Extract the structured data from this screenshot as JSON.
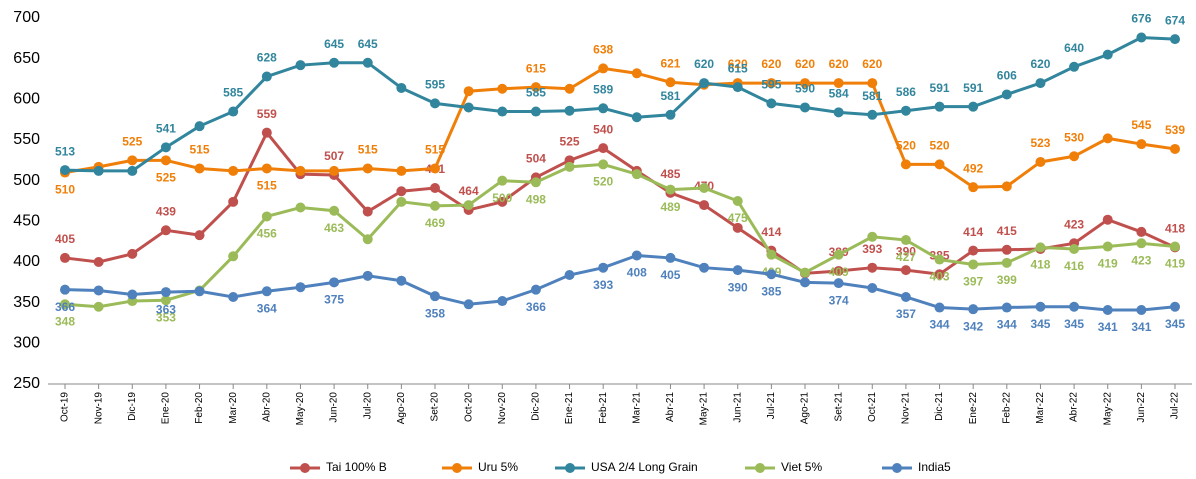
{
  "chart_data": {
    "type": "line",
    "categories": [
      "Oct-19",
      "Nov-19",
      "Dic-19",
      "Ene-20",
      "Feb-20",
      "Mar-20",
      "Abr-20",
      "May-20",
      "Jun-20",
      "Jul-20",
      "Ago-20",
      "Set-20",
      "Oct-20",
      "Nov-20",
      "Dic-20",
      "Ene-21",
      "Feb-21",
      "Mar-21",
      "Abr-21",
      "May-21",
      "Jun-21",
      "Jul-21",
      "Ago-21",
      "Set-21",
      "Oct-21",
      "Nov-21",
      "Dic-21",
      "Ene-22",
      "Feb-22",
      "Mar-22",
      "Abr-22",
      "May-22",
      "Jun-22",
      "Jul-22"
    ],
    "ylim": [
      250,
      700
    ],
    "yticks": [
      250,
      300,
      350,
      400,
      450,
      500,
      550,
      600,
      650,
      700
    ],
    "grid": false,
    "legend": "bottom",
    "series": [
      {
        "name": "Tai 100% B",
        "color": "#c0504d",
        "values": [
          405,
          400,
          410,
          439,
          433,
          474,
          559,
          508,
          507,
          462,
          487,
          491,
          464,
          474,
          504,
          525,
          540,
          512,
          485,
          470,
          442,
          414,
          386,
          389,
          393,
          390,
          385,
          414,
          415,
          416,
          423,
          452,
          437,
          418
        ],
        "value_labels": [
          "405",
          null,
          null,
          "439",
          null,
          null,
          "559",
          null,
          "507",
          null,
          null,
          "491",
          "464",
          null,
          "504",
          "525",
          "540",
          null,
          "485",
          "470",
          null,
          "414",
          null,
          "389",
          "393",
          "390",
          "385",
          "414",
          "415",
          null,
          "423",
          null,
          null,
          "418"
        ]
      },
      {
        "name": "Uru 5%",
        "color": "#f07f09",
        "values": [
          510,
          517,
          525,
          525,
          515,
          512,
          515,
          512,
          512,
          515,
          512,
          515,
          610,
          613,
          615,
          613,
          638,
          632,
          621,
          618,
          620,
          620,
          620,
          620,
          620,
          520,
          520,
          492,
          493,
          523,
          530,
          552,
          545,
          539
        ],
        "value_labels": [
          "510",
          null,
          "525",
          "525",
          "515",
          null,
          "515",
          null,
          null,
          "515",
          null,
          "515",
          null,
          null,
          "615",
          null,
          "638",
          null,
          "621",
          null,
          "620",
          "620",
          "620",
          "620",
          "620",
          "520",
          "520",
          "492",
          null,
          "523",
          "530",
          null,
          "545",
          "539"
        ]
      },
      {
        "name": "USA 2/4 Long Grain",
        "color": "#31859c",
        "values": [
          513,
          512,
          512,
          541,
          567,
          585,
          628,
          642,
          645,
          645,
          614,
          595,
          590,
          585,
          585,
          586,
          589,
          578,
          581,
          620,
          615,
          595,
          590,
          584,
          581,
          586,
          591,
          591,
          606,
          620,
          640,
          655,
          676,
          674
        ],
        "value_labels": [
          "513",
          null,
          null,
          "541",
          null,
          "585",
          "628",
          null,
          "645",
          "645",
          null,
          "595",
          null,
          null,
          "585",
          null,
          "589",
          null,
          "581",
          "620",
          "615",
          "595",
          "590",
          "584",
          "581",
          "586",
          "591",
          "591",
          "606",
          "620",
          "640",
          null,
          "676",
          "674"
        ]
      },
      {
        "name": "Viet 5%",
        "color": "#9bbb59",
        "values": [
          348,
          345,
          352,
          353,
          365,
          407,
          456,
          467,
          463,
          428,
          474,
          469,
          470,
          500,
          498,
          517,
          520,
          508,
          489,
          491,
          475,
          409,
          387,
          409,
          431,
          427,
          403,
          397,
          399,
          418,
          416,
          419,
          423,
          419
        ],
        "value_labels": [
          "348",
          null,
          null,
          "353",
          null,
          null,
          "456",
          null,
          "463",
          null,
          null,
          "469",
          null,
          "500",
          "498",
          null,
          "520",
          null,
          "489",
          null,
          "475",
          "409",
          null,
          "409",
          null,
          "427",
          "403",
          "397",
          "399",
          "418",
          "416",
          "419",
          "423",
          "419"
        ]
      },
      {
        "name": "India5",
        "color": "#4f81bd",
        "values": [
          366,
          365,
          360,
          363,
          364,
          357,
          364,
          369,
          375,
          383,
          377,
          358,
          348,
          352,
          366,
          384,
          393,
          408,
          405,
          393,
          390,
          385,
          375,
          374,
          368,
          357,
          344,
          342,
          344,
          345,
          345,
          341,
          341,
          345
        ],
        "value_labels": [
          "366",
          null,
          null,
          "363",
          null,
          null,
          "364",
          null,
          "375",
          null,
          null,
          "358",
          null,
          null,
          "366",
          null,
          "393",
          "408",
          "405",
          null,
          "390",
          "385",
          null,
          "374",
          null,
          "357",
          "344",
          "342",
          "344",
          "345",
          "345",
          "341",
          "341",
          "345"
        ]
      }
    ]
  }
}
